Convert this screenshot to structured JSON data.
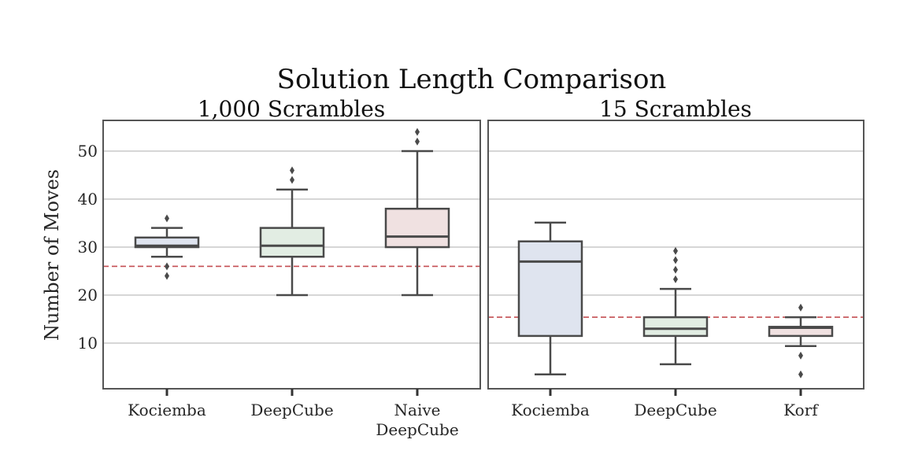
{
  "chart_data": [
    {
      "type": "box",
      "title": "1,000 Scrambles",
      "suptitle": "Solution Length Comparison",
      "xlabel": "",
      "ylabel": "Number of Moves",
      "ylim": [
        0.5,
        56.4
      ],
      "yticks": [
        10,
        20,
        30,
        40,
        50
      ],
      "grid": "y",
      "reference_line": {
        "y": 26,
        "style": "dashed",
        "color": "#c44e52"
      },
      "categories": [
        "Kociemba",
        "DeepCube",
        "Naive\nDeepCube"
      ],
      "boxes": [
        {
          "label": "Kociemba",
          "whisker_low": 28,
          "q1": 30,
          "median": 30.3,
          "q3": 32,
          "whisker_high": 34,
          "outliers": [
            36,
            26,
            24
          ],
          "fill": "#dfe4ef"
        },
        {
          "label": "DeepCube",
          "whisker_low": 20,
          "q1": 28,
          "median": 30.3,
          "q3": 34,
          "whisker_high": 42,
          "outliers": [
            44,
            46
          ],
          "fill": "#e2ede3"
        },
        {
          "label": "Naive DeepCube",
          "whisker_low": 20,
          "q1": 30,
          "median": 32.2,
          "q3": 38,
          "whisker_high": 50,
          "outliers": [
            52,
            54
          ],
          "fill": "#f0e1e1"
        }
      ]
    },
    {
      "type": "box",
      "title": "15 Scrambles",
      "xlabel": "",
      "ylabel": "",
      "ylim": [
        0.5,
        56.4
      ],
      "yticks": [
        10,
        20,
        30,
        40,
        50
      ],
      "grid": "y",
      "reference_line": {
        "y": 15.4,
        "style": "dashed",
        "color": "#c44e52"
      },
      "categories": [
        "Kociemba",
        "DeepCube",
        "Korf"
      ],
      "boxes": [
        {
          "label": "Kociemba",
          "whisker_low": 3.5,
          "q1": 11.5,
          "median": 27,
          "q3": 31.2,
          "whisker_high": 35.1,
          "outliers": [],
          "fill": "#dfe4ef"
        },
        {
          "label": "DeepCube",
          "whisker_low": 5.6,
          "q1": 11.5,
          "median": 13,
          "q3": 15.4,
          "whisker_high": 21.3,
          "outliers": [
            23.3,
            25.3,
            27.3,
            29.2
          ],
          "fill": "#e2ede3"
        },
        {
          "label": "Korf",
          "whisker_low": 9.4,
          "q1": 11.5,
          "median": 13.2,
          "q3": 13.4,
          "whisker_high": 15.4,
          "outliers": [
            17.4,
            7.4,
            3.5
          ],
          "fill": "#f0e1e1"
        }
      ]
    }
  ],
  "figure": {
    "suptitle": "Solution Length Comparison",
    "panel_titles": [
      "1,000 Scrambles",
      "15 Scrambles"
    ],
    "ylabel": "Number of Moves",
    "ytick_labels": [
      "10",
      "20",
      "30",
      "40",
      "50"
    ],
    "left_xtick_labels": [
      "Kociemba",
      "DeepCube",
      "Naive",
      "DeepCube"
    ],
    "right_xtick_labels": [
      "Kociemba",
      "DeepCube",
      "Korf"
    ]
  },
  "colors": {
    "box_edge": "#4a4a4a",
    "grid": "#c8c8c8",
    "spine": "#555555",
    "reference": "#c44e52"
  }
}
